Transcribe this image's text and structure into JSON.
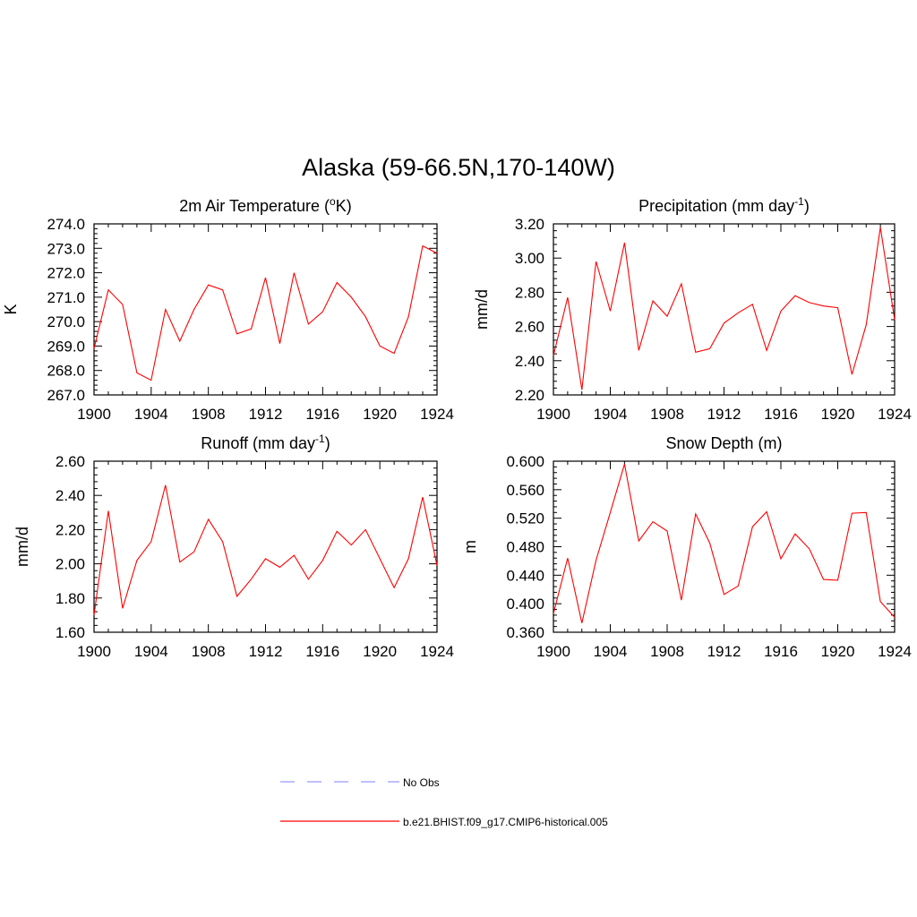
{
  "page": {
    "title": "Alaska (59-66.5N,170-140W)"
  },
  "legend": {
    "items": [
      {
        "label": "No Obs",
        "color": "#9999ff",
        "dash": true
      },
      {
        "label": "b.e21.BHIST.f09_g17.CMIP6-historical.005",
        "color": "#ff0000",
        "dash": false
      }
    ]
  },
  "chart_data": [
    {
      "type": "line",
      "title": "2m Air Temperature (",
      "title_unit": "o",
      "title_unit_style": "superscript",
      "title_suffix": "K)",
      "ylabel": "K",
      "xlim": [
        1900,
        1924
      ],
      "ylim": [
        267.0,
        274.0
      ],
      "xticks": [
        1900,
        1904,
        1908,
        1912,
        1916,
        1920,
        1924
      ],
      "yticks": [
        "267.0",
        "268.0",
        "269.0",
        "270.0",
        "271.0",
        "272.0",
        "273.0",
        "274.0"
      ],
      "ytick_values": [
        267,
        268,
        269,
        270,
        271,
        272,
        273,
        274
      ],
      "color": "#ff0000",
      "x": [
        1900,
        1901,
        1902,
        1903,
        1904,
        1905,
        1906,
        1907,
        1908,
        1909,
        1910,
        1911,
        1912,
        1913,
        1914,
        1915,
        1916,
        1917,
        1918,
        1919,
        1920,
        1921,
        1922,
        1923,
        1924
      ],
      "values": [
        268.9,
        271.3,
        270.7,
        267.9,
        267.6,
        270.5,
        269.2,
        270.5,
        271.5,
        271.3,
        269.5,
        269.7,
        271.8,
        269.1,
        272.0,
        269.9,
        270.4,
        271.6,
        271.0,
        270.2,
        269.0,
        268.7,
        270.2,
        273.1,
        272.8
      ]
    },
    {
      "type": "line",
      "title": "Precipitation (mm day",
      "title_unit": "-1",
      "title_unit_style": "superscript",
      "title_suffix": ")",
      "ylabel": "mm/d",
      "xlim": [
        1900,
        1924
      ],
      "ylim": [
        2.2,
        3.2
      ],
      "xticks": [
        1900,
        1904,
        1908,
        1912,
        1916,
        1920,
        1924
      ],
      "yticks": [
        "2.20",
        "2.40",
        "2.60",
        "2.80",
        "3.00",
        "3.20"
      ],
      "ytick_values": [
        2.2,
        2.4,
        2.6,
        2.8,
        3.0,
        3.2
      ],
      "color": "#ff0000",
      "x": [
        1900,
        1901,
        1902,
        1903,
        1904,
        1905,
        1906,
        1907,
        1908,
        1909,
        1910,
        1911,
        1912,
        1913,
        1914,
        1915,
        1916,
        1917,
        1918,
        1919,
        1920,
        1921,
        1922,
        1923,
        1924
      ],
      "values": [
        2.43,
        2.77,
        2.23,
        2.98,
        2.69,
        3.09,
        2.46,
        2.75,
        2.66,
        2.85,
        2.45,
        2.47,
        2.62,
        2.68,
        2.73,
        2.46,
        2.69,
        2.78,
        2.74,
        2.72,
        2.71,
        2.32,
        2.61,
        3.18,
        2.64
      ]
    },
    {
      "type": "line",
      "title": "Runoff (mm day",
      "title_unit": "-1",
      "title_unit_style": "superscript",
      "title_suffix": ")",
      "ylabel": "mm/d",
      "xlim": [
        1900,
        1924
      ],
      "ylim": [
        1.6,
        2.6
      ],
      "xticks": [
        1900,
        1904,
        1908,
        1912,
        1916,
        1920,
        1924
      ],
      "yticks": [
        "1.60",
        "1.80",
        "2.00",
        "2.20",
        "2.40",
        "2.60"
      ],
      "ytick_values": [
        1.6,
        1.8,
        2.0,
        2.2,
        2.4,
        2.6
      ],
      "color": "#ff0000",
      "x": [
        1900,
        1901,
        1902,
        1903,
        1904,
        1905,
        1906,
        1907,
        1908,
        1909,
        1910,
        1911,
        1912,
        1913,
        1914,
        1915,
        1916,
        1917,
        1918,
        1919,
        1920,
        1921,
        1922,
        1923,
        1924
      ],
      "values": [
        1.7,
        2.31,
        1.74,
        2.02,
        2.13,
        2.46,
        2.01,
        2.07,
        2.26,
        2.13,
        1.81,
        1.91,
        2.03,
        1.98,
        2.05,
        1.91,
        2.02,
        2.19,
        2.11,
        2.2,
        2.03,
        1.86,
        2.03,
        2.39,
        1.99
      ]
    },
    {
      "type": "line",
      "title": "Snow Depth (m)",
      "ylabel": "m",
      "xlim": [
        1900,
        1924
      ],
      "ylim": [
        0.36,
        0.6
      ],
      "xticks": [
        1900,
        1904,
        1908,
        1912,
        1916,
        1920,
        1924
      ],
      "yticks": [
        "0.360",
        "0.400",
        "0.440",
        "0.480",
        "0.520",
        "0.560",
        "0.600"
      ],
      "ytick_values": [
        0.36,
        0.4,
        0.44,
        0.48,
        0.52,
        0.56,
        0.6
      ],
      "color": "#ff0000",
      "x": [
        1900,
        1901,
        1902,
        1903,
        1904,
        1905,
        1906,
        1907,
        1908,
        1909,
        1910,
        1911,
        1912,
        1913,
        1914,
        1915,
        1916,
        1917,
        1918,
        1919,
        1920,
        1921,
        1922,
        1923,
        1924
      ],
      "values": [
        0.386,
        0.464,
        0.373,
        0.461,
        0.528,
        0.596,
        0.488,
        0.515,
        0.502,
        0.405,
        0.526,
        0.485,
        0.413,
        0.425,
        0.508,
        0.529,
        0.463,
        0.498,
        0.477,
        0.434,
        0.433,
        0.527,
        0.528,
        0.403,
        0.381
      ]
    }
  ]
}
